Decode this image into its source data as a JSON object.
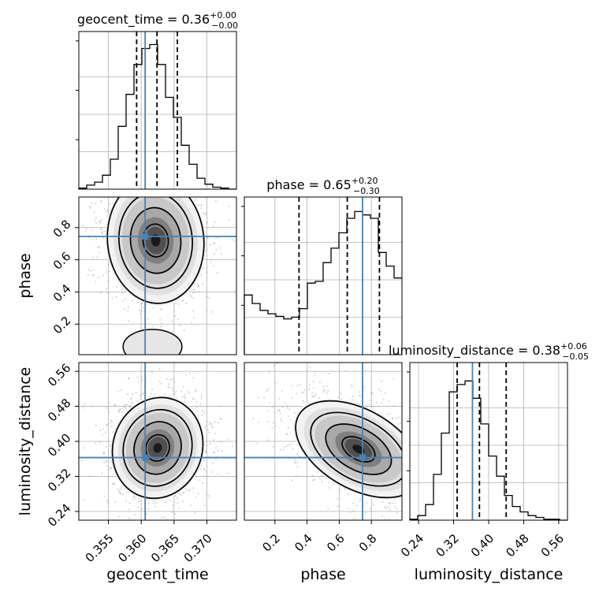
{
  "chart_data": {
    "type": "corner",
    "truth_color": "#4682b4",
    "parameters": [
      {
        "name": "geocent_time",
        "label": "geocent_time",
        "title_main": "geocent_time = 0.36",
        "title_plus": "+0.00",
        "title_minus": "−0.00",
        "range": [
          0.3505,
          0.3745
        ],
        "ticks": [
          0.355,
          0.36,
          0.365,
          0.37
        ],
        "tick_labels": [
          "0.355",
          "0.360",
          "0.365",
          "0.370"
        ],
        "quantiles": [
          0.3593,
          0.3624,
          0.3655
        ],
        "truth": 0.3606,
        "hist": {
          "bin_width": 0.0012,
          "x0": 0.3505,
          "counts": [
            1,
            4,
            7,
            14,
            30,
            63,
            95,
            125,
            141,
            145,
            125,
            92,
            72,
            44,
            25,
            11,
            5,
            2,
            1,
            0
          ],
          "max": 158
        }
      },
      {
        "name": "phase",
        "label": "phase",
        "title_main": "phase = 0.65",
        "title_plus": "+0.20",
        "title_minus": "−0.30",
        "range": [
          0.01,
          0.99
        ],
        "ticks": [
          0.2,
          0.4,
          0.6,
          0.8
        ],
        "tick_labels": [
          "0.2",
          "0.4",
          "0.6",
          "0.8"
        ],
        "quantiles": [
          0.35,
          0.65,
          0.85
        ],
        "truth": 0.745,
        "hist": {
          "bin_width": 0.049,
          "x0": 0.01,
          "counts": [
            70,
            60,
            52,
            48,
            45,
            42,
            44,
            54,
            84,
            86,
            108,
            125,
            143,
            160,
            168,
            164,
            160,
            120,
            104,
            90
          ],
          "max": 185
        }
      },
      {
        "name": "luminosity_distance",
        "label": "luminosity_distance",
        "title_main": "luminosity_distance = 0.38",
        "title_plus": "+0.06",
        "title_minus": "−0.05",
        "range": [
          0.22,
          0.58
        ],
        "ticks": [
          0.24,
          0.32,
          0.4,
          0.48,
          0.56
        ],
        "tick_labels": [
          "0.24",
          "0.32",
          "0.40",
          "0.48",
          "0.56"
        ],
        "quantiles": [
          0.328,
          0.379,
          0.44
        ],
        "truth": 0.363,
        "hist": {
          "bin_width": 0.018,
          "x0": 0.22,
          "counts": [
            1,
            5,
            17,
            50,
            95,
            140,
            148,
            152,
            133,
            105,
            70,
            48,
            27,
            15,
            9,
            5,
            3,
            1,
            1,
            0
          ],
          "max": 172
        }
      }
    ],
    "y_axis_params": [
      "phase",
      "luminosity_distance"
    ],
    "x_axis_params": [
      "geocent_time",
      "phase",
      "luminosity_distance"
    ],
    "joint": [
      {
        "x": "geocent_time",
        "y": "phase",
        "center": [
          0.3622,
          0.72
        ],
        "sigma": [
          0.0032,
          0.17
        ],
        "rho": -0.05,
        "bimodal_tail": true
      },
      {
        "x": "geocent_time",
        "y": "luminosity_distance",
        "center": [
          0.3625,
          0.385
        ],
        "sigma": [
          0.003,
          0.05
        ],
        "rho": 0.08
      },
      {
        "x": "phase",
        "y": "luminosity_distance",
        "center": [
          0.72,
          0.382
        ],
        "sigma": [
          0.17,
          0.048
        ],
        "rho": -0.45
      }
    ],
    "grid": true
  }
}
